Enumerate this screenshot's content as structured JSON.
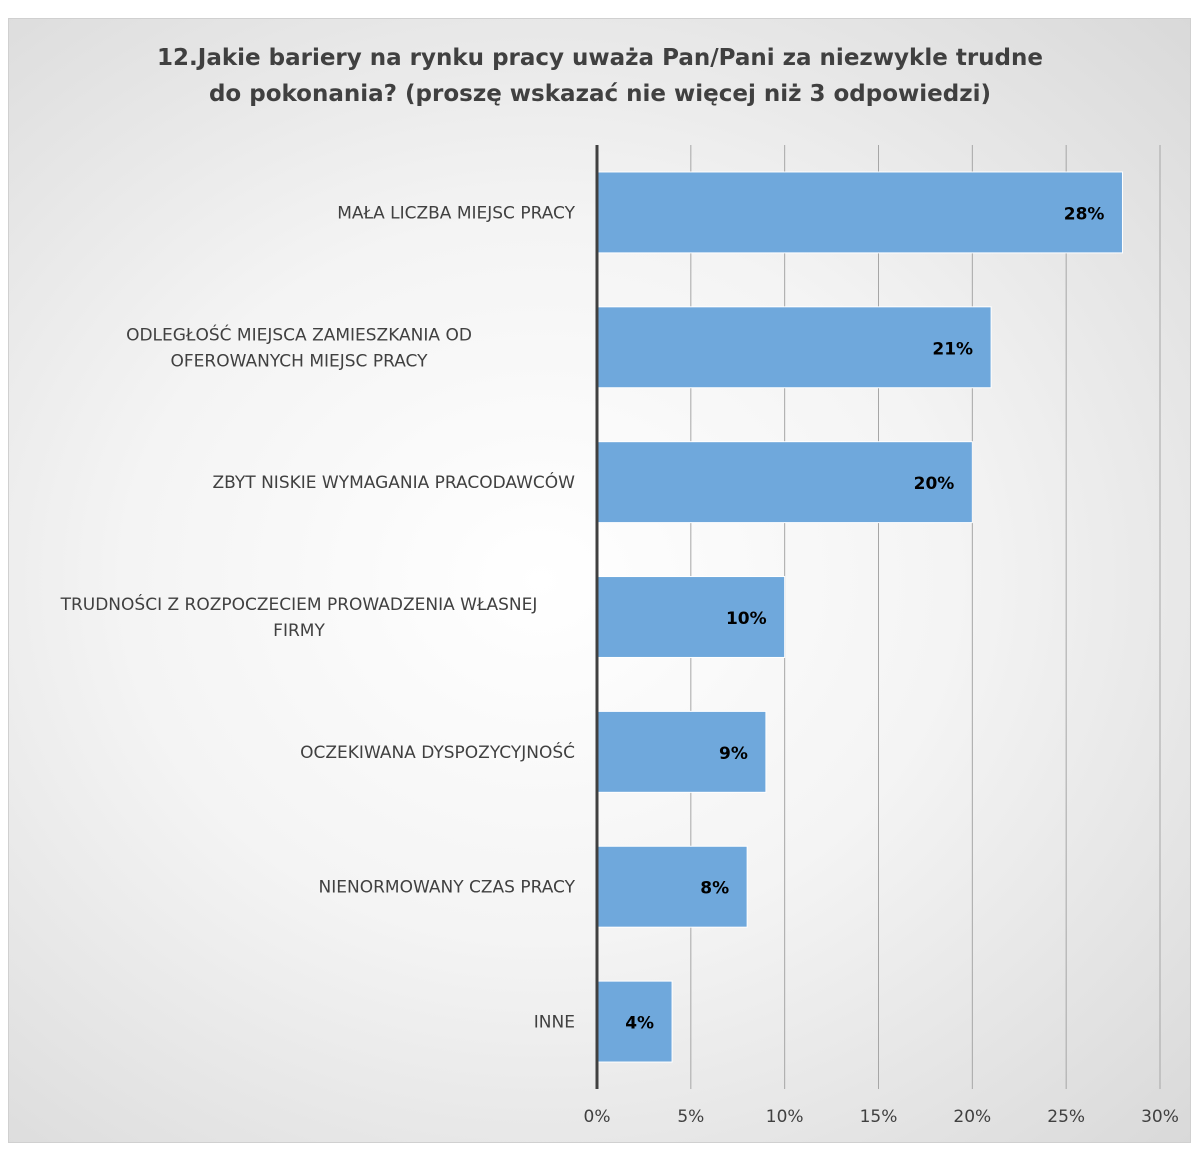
{
  "top_strip_text": "",
  "chart_data": {
    "type": "bar",
    "orientation": "horizontal",
    "title": "12.Jakie bariery na rynku pracy uważa Pan/Pani za niezwykle trudne do pokonania? (proszę wskazać nie więcej niż 3 odpowiedzi)",
    "title_lines": [
      "12.Jakie bariery na rynku pracy uważa Pan/Pani za niezwykle trudne",
      "do pokonania? (proszę wskazać nie więcej niż 3 odpowiedzi)"
    ],
    "categories": [
      [
        "MAŁA LICZBA MIEJSC PRACY"
      ],
      [
        "ODLEGŁOŚĆ MIEJSCA ZAMIESZKANIA OD",
        "OFEROWANYCH MIEJSC PRACY"
      ],
      [
        "ZBYT NISKIE WYMAGANIA PRACODAWCÓW"
      ],
      [
        "TRUDNOŚCI Z ROZPOCZECIEM PROWADZENIA WŁASNEJ",
        "FIRMY"
      ],
      [
        "OCZEKIWANA DYSPOZYCYJNOŚĆ"
      ],
      [
        "NIENORMOWANY CZAS PRACY"
      ],
      [
        "INNE"
      ]
    ],
    "values": [
      28,
      21,
      20,
      10,
      9,
      8,
      4
    ],
    "value_labels": [
      "28%",
      "21%",
      "20%",
      "10%",
      "9%",
      "8%",
      "4%"
    ],
    "x_ticks": [
      0,
      5,
      10,
      15,
      20,
      25,
      30
    ],
    "x_tick_labels": [
      "0%",
      "5%",
      "10%",
      "15%",
      "20%",
      "25%",
      "30%"
    ],
    "xlim": [
      0,
      30
    ],
    "xlabel": "",
    "ylabel": "",
    "grid": "vertical",
    "legend": "none",
    "bar_color": "#6fa8dc",
    "bar_border_color": "#ffffff",
    "axis_color": "#404040",
    "grid_color": "#a6a6a6"
  }
}
